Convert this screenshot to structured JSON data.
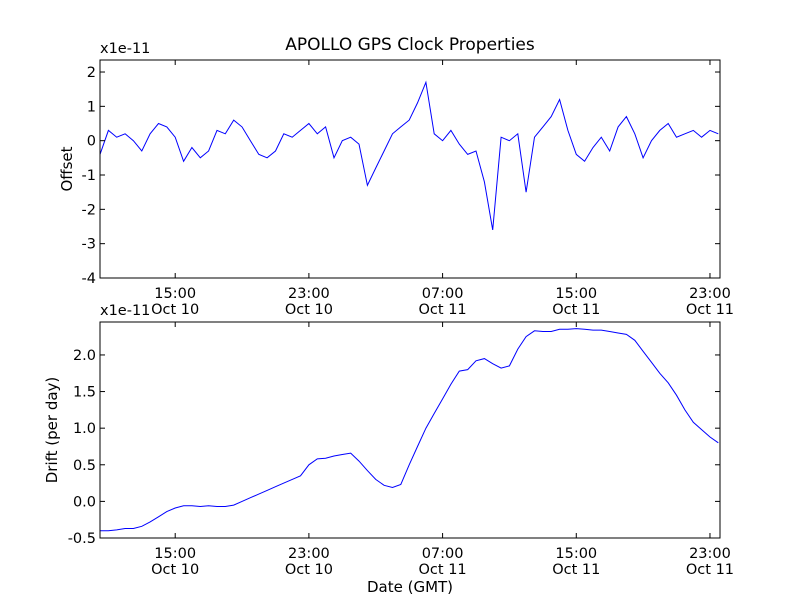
{
  "chart_data": [
    {
      "type": "line",
      "title": "APOLLO GPS Clock Properties",
      "ylabel": "Offset",
      "xlabel": "",
      "y_scale_label": "x1e-11",
      "xlim": [
        "Oct 10 10:30",
        "Oct 11 23:45"
      ],
      "ylim": [
        -4,
        2.35
      ],
      "yticks": [
        "-4",
        "-3",
        "-2",
        "-1",
        "0",
        "1",
        "2"
      ],
      "xticks": [
        {
          "time": "15:00",
          "date": "Oct 10"
        },
        {
          "time": "23:00",
          "date": "Oct 10"
        },
        {
          "time": "07:00",
          "date": "Oct 11"
        },
        {
          "time": "15:00",
          "date": "Oct 11"
        },
        {
          "time": "23:00",
          "date": "Oct 11"
        }
      ],
      "grid": false,
      "series_color": "#0000ff",
      "x_units": "hours after Oct 10 00:00 GMT",
      "x": [
        10.5,
        11.0,
        11.5,
        12.0,
        12.5,
        13.0,
        13.5,
        14.0,
        14.5,
        15.0,
        15.5,
        16.0,
        16.5,
        17.0,
        17.5,
        18.0,
        18.5,
        19.0,
        19.5,
        20.0,
        20.5,
        21.0,
        21.5,
        22.0,
        22.5,
        23.0,
        23.5,
        24.0,
        24.5,
        25.0,
        25.5,
        26.0,
        26.5,
        27.0,
        27.5,
        28.0,
        28.5,
        29.0,
        29.5,
        30.0,
        30.5,
        31.0,
        31.5,
        32.0,
        32.5,
        33.0,
        33.5,
        34.0,
        34.5,
        35.0,
        35.5,
        36.0,
        36.5,
        37.0,
        37.5,
        38.0,
        38.5,
        39.0,
        39.5,
        40.0,
        40.5,
        41.0,
        41.5,
        42.0,
        42.5,
        43.0,
        43.5,
        44.0,
        44.5,
        45.0,
        45.5,
        46.0,
        46.5,
        47.0,
        47.5
      ],
      "values": [
        -0.4,
        0.3,
        0.1,
        0.2,
        0.0,
        -0.3,
        0.2,
        0.5,
        0.4,
        0.1,
        -0.6,
        -0.2,
        -0.5,
        -0.3,
        0.3,
        0.2,
        0.6,
        0.4,
        0.0,
        -0.4,
        -0.5,
        -0.3,
        0.2,
        0.1,
        0.3,
        0.5,
        0.2,
        0.4,
        -0.5,
        0.0,
        0.1,
        -0.1,
        -1.3,
        -0.8,
        -0.3,
        0.2,
        0.4,
        0.6,
        1.1,
        1.7,
        0.2,
        0.0,
        0.3,
        -0.1,
        -0.4,
        -0.3,
        -1.2,
        -2.6,
        0.1,
        0.0,
        0.2,
        -1.5,
        0.1,
        0.4,
        0.7,
        1.2,
        0.3,
        -0.4,
        -0.6,
        -0.2,
        0.1,
        -0.3,
        0.4,
        0.7,
        0.2,
        -0.5,
        0.0,
        0.3,
        0.5,
        0.1,
        0.2,
        0.3,
        0.1,
        0.3,
        0.2
      ]
    },
    {
      "type": "line",
      "title": "",
      "ylabel": "Drift (per day)",
      "xlabel": "Date (GMT)",
      "y_scale_label": "x1e-11",
      "xlim": [
        "Oct 10 10:30",
        "Oct 11 23:45"
      ],
      "ylim": [
        -0.5,
        2.45
      ],
      "yticks": [
        "-0.5",
        "0.0",
        "0.5",
        "1.0",
        "1.5",
        "2.0"
      ],
      "xticks": [
        {
          "time": "15:00",
          "date": "Oct 10"
        },
        {
          "time": "23:00",
          "date": "Oct 10"
        },
        {
          "time": "07:00",
          "date": "Oct 11"
        },
        {
          "time": "15:00",
          "date": "Oct 11"
        },
        {
          "time": "23:00",
          "date": "Oct 11"
        }
      ],
      "grid": false,
      "series_color": "#0000ff",
      "x_units": "hours after Oct 10 00:00 GMT",
      "x": [
        10.5,
        11.0,
        11.5,
        12.0,
        12.5,
        13.0,
        13.5,
        14.0,
        14.5,
        15.0,
        15.5,
        16.0,
        16.5,
        17.0,
        17.5,
        18.0,
        18.5,
        19.0,
        19.5,
        20.0,
        20.5,
        21.0,
        21.5,
        22.0,
        22.5,
        23.0,
        23.5,
        24.0,
        24.5,
        25.0,
        25.5,
        26.0,
        26.5,
        27.0,
        27.5,
        28.0,
        28.5,
        29.0,
        29.5,
        30.0,
        30.5,
        31.0,
        31.5,
        32.0,
        32.5,
        33.0,
        33.5,
        34.0,
        34.5,
        35.0,
        35.5,
        36.0,
        36.5,
        37.0,
        37.5,
        38.0,
        38.5,
        39.0,
        39.5,
        40.0,
        40.5,
        41.0,
        41.5,
        42.0,
        42.5,
        43.0,
        43.5,
        44.0,
        44.5,
        45.0,
        45.5,
        46.0,
        46.5,
        47.0,
        47.5
      ],
      "values": [
        -0.4,
        -0.4,
        -0.39,
        -0.37,
        -0.37,
        -0.34,
        -0.28,
        -0.21,
        -0.14,
        -0.09,
        -0.06,
        -0.06,
        -0.07,
        -0.06,
        -0.07,
        -0.07,
        -0.05,
        0.0,
        0.05,
        0.1,
        0.15,
        0.2,
        0.25,
        0.3,
        0.35,
        0.5,
        0.58,
        0.59,
        0.62,
        0.64,
        0.66,
        0.55,
        0.42,
        0.3,
        0.22,
        0.19,
        0.23,
        0.5,
        0.75,
        1.0,
        1.2,
        1.4,
        1.6,
        1.78,
        1.8,
        1.92,
        1.95,
        1.88,
        1.82,
        1.85,
        2.08,
        2.25,
        2.33,
        2.32,
        2.32,
        2.35,
        2.35,
        2.36,
        2.35,
        2.34,
        2.34,
        2.32,
        2.3,
        2.28,
        2.2,
        2.05,
        1.9,
        1.75,
        1.62,
        1.45,
        1.25,
        1.08,
        0.98,
        0.88,
        0.8
      ]
    }
  ]
}
